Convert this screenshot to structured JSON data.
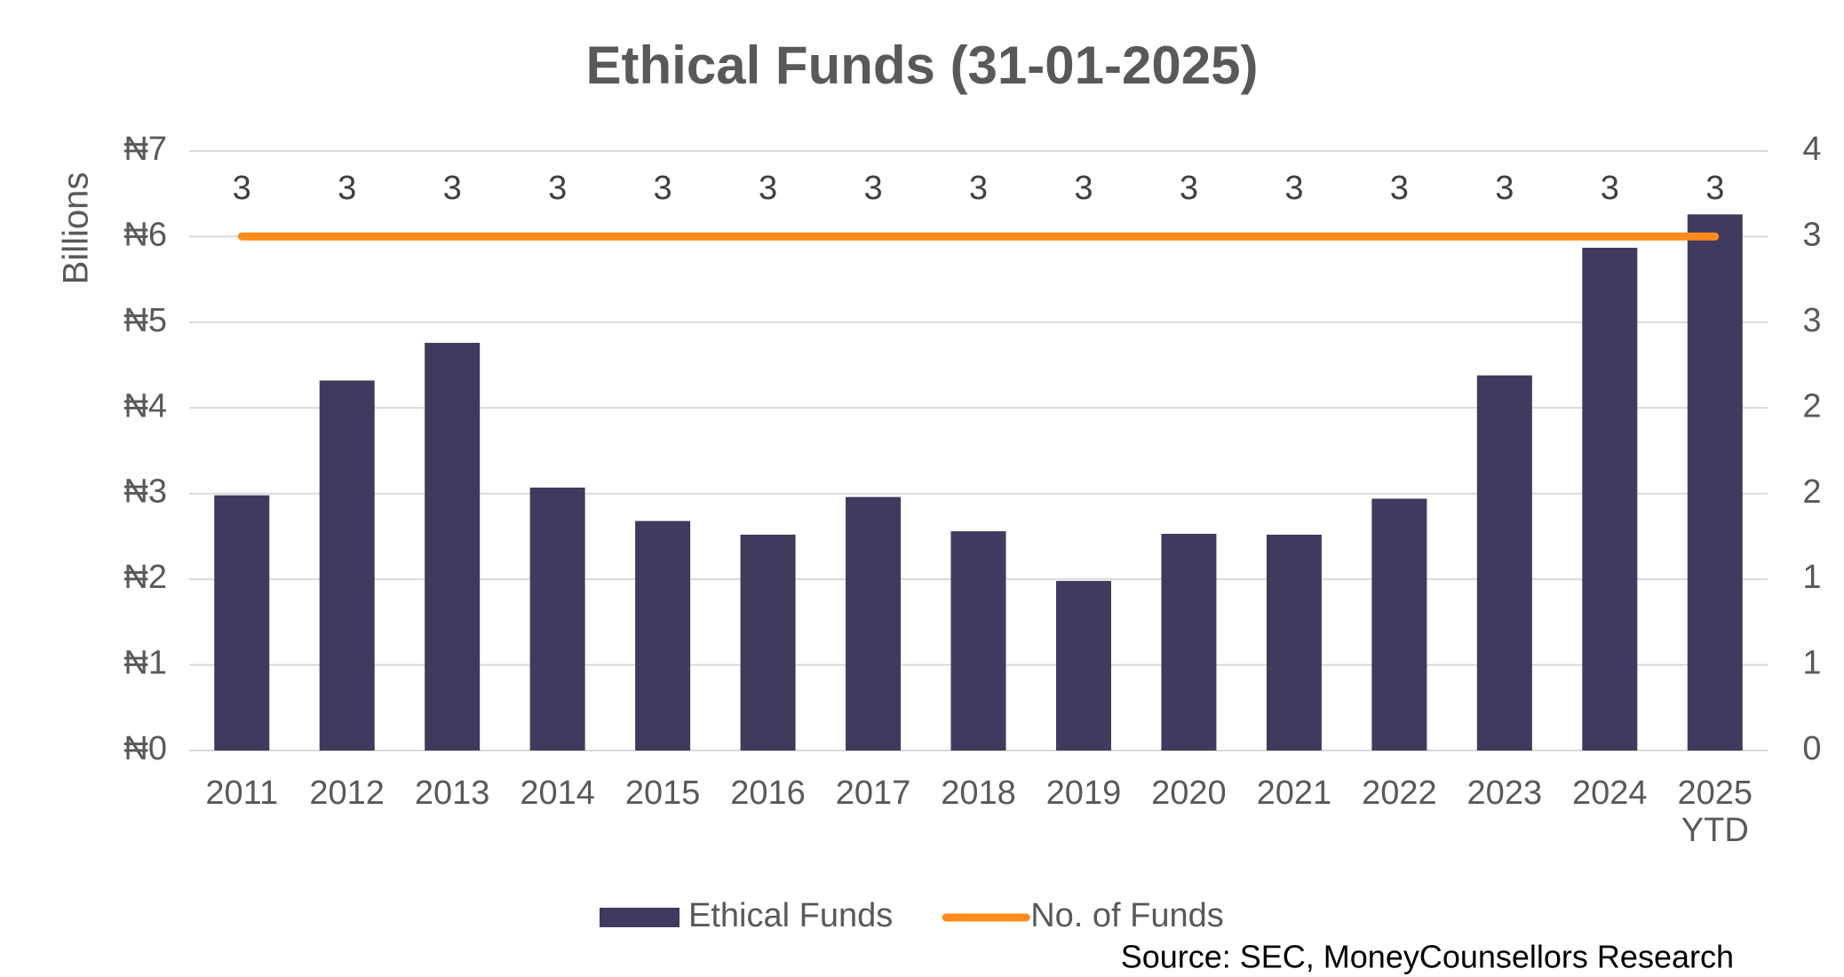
{
  "chart_data": {
    "type": "bar_line",
    "title": "Ethical Funds (31-01-2025)",
    "ylabel": "Billions",
    "source": "Source: SEC, MoneyCounsellors Research",
    "categories": [
      "2011",
      "2012",
      "2013",
      "2014",
      "2015",
      "2016",
      "2017",
      "2018",
      "2019",
      "2020",
      "2021",
      "2022",
      "2023",
      "2024",
      "2025 YTD"
    ],
    "series": [
      {
        "name": "Ethical Funds",
        "type": "bar",
        "color": "#3f3a5e",
        "values": [
          2.98,
          4.32,
          4.76,
          3.07,
          2.68,
          2.52,
          2.96,
          2.56,
          1.98,
          2.53,
          2.52,
          2.94,
          4.38,
          5.87,
          6.26
        ]
      },
      {
        "name": "No. of Funds",
        "type": "line",
        "axis": "y2",
        "color": "#ff8c1a",
        "values": [
          3.43,
          3.43,
          3.43,
          3.43,
          3.43,
          3.43,
          3.43,
          3.43,
          3.43,
          3.43,
          3.43,
          3.43,
          3.43,
          3.43,
          3.43
        ],
        "value_labels": [
          "3",
          "3",
          "3",
          "3",
          "3",
          "3",
          "3",
          "3",
          "3",
          "3",
          "3",
          "3",
          "3",
          "3",
          "3"
        ]
      }
    ],
    "ylim": [
      0,
      7
    ],
    "yticks": [
      {
        "value": 0,
        "label": "₦0"
      },
      {
        "value": 1,
        "label": "₦1"
      },
      {
        "value": 2,
        "label": "₦2"
      },
      {
        "value": 3,
        "label": "₦3"
      },
      {
        "value": 4,
        "label": "₦4"
      },
      {
        "value": 5,
        "label": "₦5"
      },
      {
        "value": 6,
        "label": "₦6"
      },
      {
        "value": 7,
        "label": "₦7"
      }
    ],
    "y2lim": [
      0,
      4
    ],
    "y2ticks": [
      0,
      {
        "value": 0.571,
        "label": "1"
      },
      {
        "value": 1.143,
        "label": "1"
      },
      {
        "value": 1.714,
        "label": "2"
      },
      {
        "value": 2.286,
        "label": "2"
      },
      {
        "value": 2.857,
        "label": "3"
      },
      {
        "value": 3.429,
        "label": "3"
      },
      4
    ],
    "grid": true,
    "legend": "bottom"
  }
}
